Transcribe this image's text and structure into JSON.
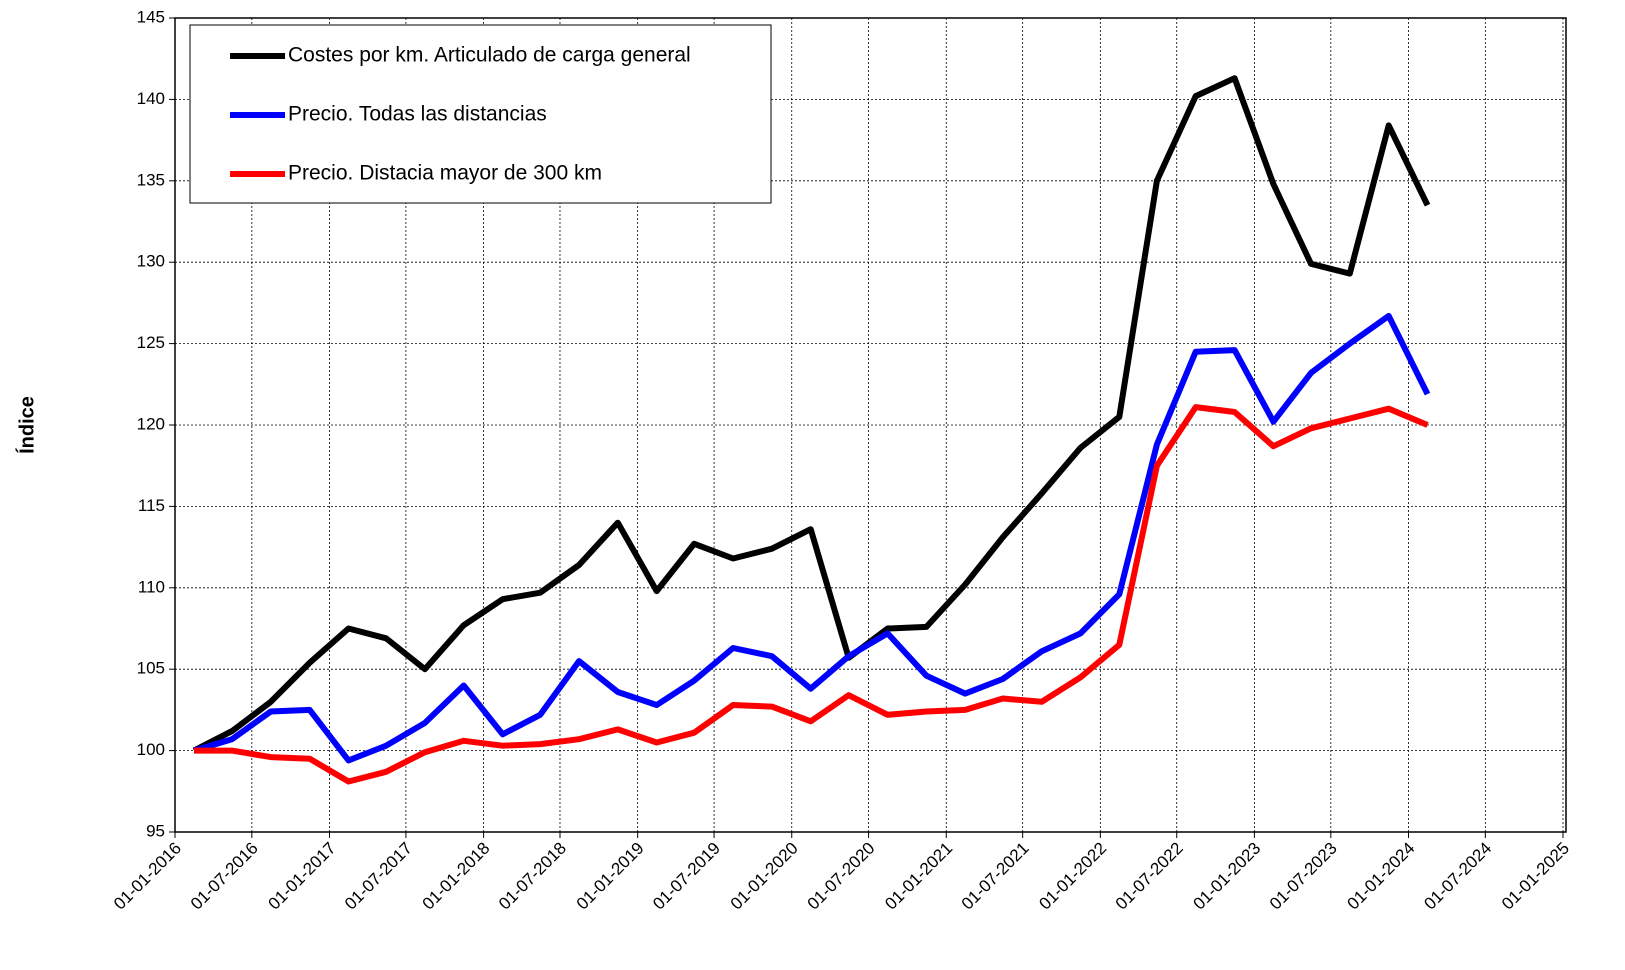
{
  "chart_data": {
    "type": "line",
    "y_label": "Índice",
    "x": [
      "2016-02-15",
      "2016-05-15",
      "2016-08-15",
      "2016-11-15",
      "2017-02-15",
      "2017-05-15",
      "2017-08-15",
      "2017-11-15",
      "2018-02-15",
      "2018-05-15",
      "2018-08-15",
      "2018-11-15",
      "2019-02-15",
      "2019-05-15",
      "2019-08-15",
      "2019-11-15",
      "2020-02-15",
      "2020-05-15",
      "2020-08-15",
      "2020-11-15",
      "2021-02-15",
      "2021-05-15",
      "2021-08-15",
      "2021-11-15",
      "2022-02-15",
      "2022-05-15",
      "2022-08-15",
      "2022-11-15",
      "2023-02-15",
      "2023-05-15",
      "2023-08-15",
      "2023-11-15",
      "2024-02-15"
    ],
    "series": [
      {
        "name": "Costes por km. Articulado de carga general",
        "color": "#000000",
        "values": [
          100,
          101.2,
          103.0,
          105.4,
          107.5,
          106.9,
          105.0,
          107.7,
          109.3,
          109.7,
          111.4,
          114.0,
          109.8,
          112.7,
          111.8,
          112.4,
          113.6,
          105.7,
          107.5,
          107.6,
          110.2,
          113.1,
          115.8,
          118.6,
          120.5,
          135.0,
          140.2,
          141.3,
          134.8,
          129.9,
          129.3,
          138.4,
          133.5
        ]
      },
      {
        "name": "Precio. Todas las distancias",
        "color": "#0000ff",
        "values": [
          100,
          100.7,
          102.4,
          102.5,
          99.4,
          100.3,
          101.7,
          104.0,
          101.0,
          102.2,
          105.5,
          103.6,
          102.8,
          104.3,
          106.3,
          105.8,
          103.8,
          105.8,
          107.2,
          104.6,
          103.5,
          104.4,
          106.1,
          107.2,
          109.6,
          118.8,
          124.5,
          124.6,
          120.2,
          123.2,
          125.0,
          126.7,
          121.9
        ]
      },
      {
        "name": "Precio. Distacia mayor de 300 km",
        "color": "#ff0000",
        "values": [
          100,
          100.0,
          99.6,
          99.5,
          98.1,
          98.7,
          99.9,
          100.6,
          100.3,
          100.4,
          100.7,
          101.3,
          100.5,
          101.1,
          102.8,
          102.7,
          101.8,
          103.4,
          102.2,
          102.4,
          102.5,
          103.2,
          103.0,
          104.5,
          106.5,
          117.5,
          121.1,
          120.8,
          118.7,
          119.8,
          120.4,
          121.0,
          120.0
        ]
      }
    ],
    "xlim": [
      "2016-01-01",
      "2025-01-01"
    ],
    "xticks": [
      {
        "value": "2016-01-01",
        "label": "01-01-2016"
      },
      {
        "value": "2016-07-01",
        "label": "01-07-2016"
      },
      {
        "value": "2017-01-01",
        "label": "01-01-2017"
      },
      {
        "value": "2017-07-01",
        "label": "01-07-2017"
      },
      {
        "value": "2018-01-01",
        "label": "01-01-2018"
      },
      {
        "value": "2018-07-01",
        "label": "01-07-2018"
      },
      {
        "value": "2019-01-01",
        "label": "01-01-2019"
      },
      {
        "value": "2019-07-01",
        "label": "01-07-2019"
      },
      {
        "value": "2020-01-01",
        "label": "01-01-2020"
      },
      {
        "value": "2020-07-01",
        "label": "01-07-2020"
      },
      {
        "value": "2021-01-01",
        "label": "01-01-2021"
      },
      {
        "value": "2021-07-01",
        "label": "01-07-2021"
      },
      {
        "value": "2022-01-01",
        "label": "01-01-2022"
      },
      {
        "value": "2022-07-01",
        "label": "01-07-2022"
      },
      {
        "value": "2023-01-01",
        "label": "01-01-2023"
      },
      {
        "value": "2023-07-01",
        "label": "01-07-2023"
      },
      {
        "value": "2024-01-01",
        "label": "01-01-2024"
      },
      {
        "value": "2024-07-01",
        "label": "01-07-2024"
      },
      {
        "value": "2025-01-01",
        "label": "01-01-2025"
      }
    ],
    "ylim": [
      95,
      145
    ],
    "yticks": [
      95,
      100,
      105,
      110,
      115,
      120,
      125,
      130,
      135,
      140,
      145
    ],
    "grid": true,
    "legend": "upper left"
  }
}
